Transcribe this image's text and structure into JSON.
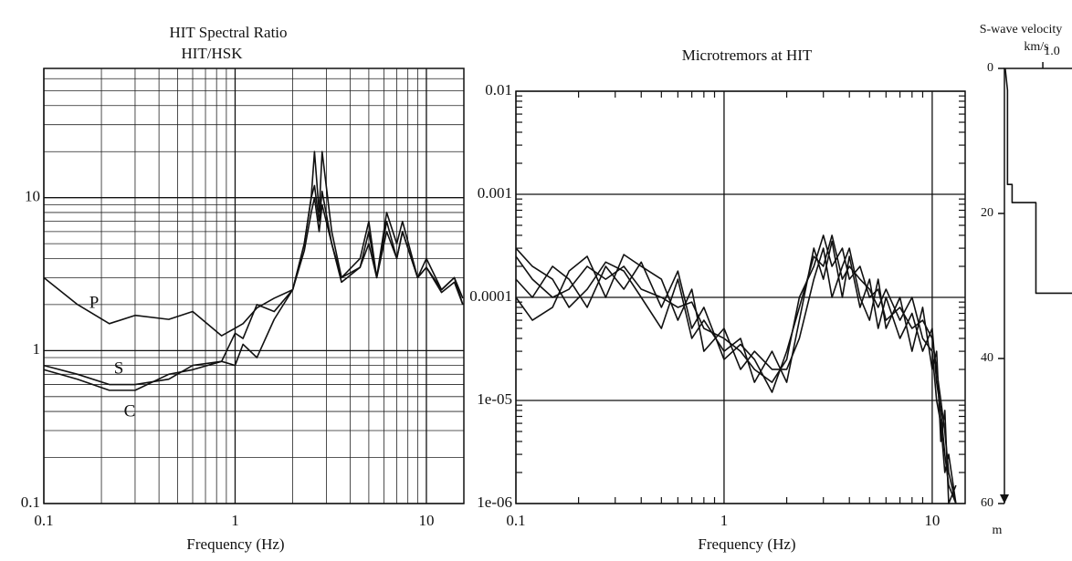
{
  "chart_data": [
    {
      "type": "line",
      "title": "HIT Spectral Ratio",
      "subtitle": "HIT/HSK",
      "xlabel": "Frequency (Hz)",
      "xscale": "log",
      "yscale": "log",
      "grid": true,
      "minor_grid": true,
      "xlim": [
        0.1,
        15.7
      ],
      "ylim": [
        0.1,
        70
      ],
      "xticks": [
        0.1,
        1,
        10
      ],
      "yticks": [
        0.1,
        1,
        10
      ],
      "annotations": [
        "P",
        "S",
        "C"
      ],
      "x": [
        0.1,
        0.15,
        0.22,
        0.3,
        0.45,
        0.6,
        0.85,
        1,
        1.1,
        1.3,
        1.6,
        2,
        2.3,
        2.5,
        2.6,
        2.75,
        2.85,
        3.2,
        3.6,
        4.5,
        5,
        5.5,
        6.2,
        7,
        7.5,
        9,
        10,
        12,
        14,
        15.5
      ],
      "series": [
        {
          "color": "#111111",
          "values": [
            3,
            2,
            1.5,
            1.7,
            1.6,
            1.8,
            1.25,
            1.4,
            1.5,
            1.9,
            2.2,
            2.5,
            5,
            10,
            20,
            8,
            20,
            6,
            3,
            4,
            7,
            3,
            8,
            5,
            7,
            3,
            4,
            2.5,
            3,
            2
          ]
        },
        {
          "color": "#111111",
          "values": [
            0.8,
            0.7,
            0.6,
            0.6,
            0.65,
            0.8,
            0.85,
            1.3,
            1.2,
            2,
            1.8,
            2.5,
            5,
            10,
            12,
            7,
            11,
            5,
            3,
            3.5,
            6,
            3,
            7,
            4,
            6,
            3,
            3.5,
            2.5,
            3,
            2.2
          ]
        },
        {
          "color": "#111111",
          "values": [
            0.75,
            0.65,
            0.55,
            0.55,
            0.7,
            0.75,
            0.85,
            0.8,
            1.1,
            0.9,
            1.6,
            2.5,
            4.5,
            8,
            10,
            6,
            9,
            5,
            2.8,
            3.5,
            5,
            3,
            6,
            4,
            6,
            3,
            3.5,
            2.4,
            2.8,
            2
          ]
        }
      ]
    },
    {
      "type": "line",
      "title": "Microtremors at HIT",
      "xlabel": "Frequency (Hz)",
      "xscale": "log",
      "yscale": "log",
      "grid": true,
      "minor_ticks": true,
      "xlim": [
        0.1,
        14.4
      ],
      "ylim": [
        1e-06,
        0.01
      ],
      "xticks": [
        0.1,
        1,
        10
      ],
      "yticks": [
        {
          "value": 1e-06,
          "label": "1e-06"
        },
        {
          "value": 1e-05,
          "label": "1e-05"
        },
        0.0001,
        0.001,
        0.01
      ],
      "x": [
        0.1,
        0.12,
        0.15,
        0.18,
        0.22,
        0.27,
        0.33,
        0.4,
        0.5,
        0.6,
        0.7,
        0.8,
        1,
        1.2,
        1.4,
        1.7,
        2,
        2.3,
        2.7,
        3,
        3.3,
        3.7,
        4,
        4.5,
        5,
        5.5,
        6,
        7,
        8,
        9,
        10,
        10.5,
        11,
        11.5,
        12,
        13
      ],
      "series": [
        {
          "color": "#111111",
          "values": [
            0.00025,
            0.00015,
            0.0001,
            0.00012,
            0.0002,
            0.00015,
            0.0002,
            0.00012,
            0.0001,
            8e-05,
            9e-05,
            5e-05,
            4e-05,
            3e-05,
            2e-05,
            1.5e-05,
            2.5e-05,
            0.0001,
            0.0002,
            0.0004,
            0.0002,
            0.0003,
            0.00015,
            0.0002,
            0.0001,
            0.00012,
            6e-05,
            8e-05,
            5e-05,
            6e-05,
            4e-05,
            2e-05,
            1e-05,
            5e-06,
            2e-06,
            1e-06
          ]
        },
        {
          "color": "#111111",
          "values": [
            0.0003,
            0.0002,
            0.00015,
            8e-05,
            0.00012,
            0.00022,
            0.00018,
            0.0001,
            5e-05,
            0.00015,
            4e-05,
            6e-05,
            3e-05,
            4e-05,
            1.5e-05,
            3e-05,
            1.5e-05,
            6e-05,
            0.0003,
            0.00015,
            0.00035,
            0.0001,
            0.00025,
            8e-05,
            0.00015,
            5e-05,
            0.0001,
            4e-05,
            7e-05,
            3e-05,
            5e-05,
            1.5e-05,
            8e-06,
            3e-06,
            1.5e-06,
            1e-06
          ]
        },
        {
          "color": "#111111",
          "values": [
            0.0001,
            6e-05,
            8e-05,
            0.00018,
            0.00025,
            0.0001,
            0.00026,
            0.0002,
            0.00015,
            6e-05,
            0.00012,
            3e-05,
            5e-05,
            2e-05,
            3e-05,
            2e-05,
            2e-05,
            4e-05,
            0.00015,
            0.0003,
            0.0001,
            0.0002,
            0.0003,
            0.0001,
            6e-05,
            0.00015,
            5e-05,
            0.0001,
            3e-05,
            8e-05,
            2e-05,
            3e-05,
            4e-06,
            8e-06,
            1e-06,
            1.5e-06
          ]
        },
        {
          "color": "#111111",
          "values": [
            0.00015,
            0.0001,
            0.0002,
            0.00015,
            8e-05,
            0.0002,
            0.00012,
            0.00022,
            8e-05,
            0.00018,
            5e-05,
            8e-05,
            2.5e-05,
            3.5e-05,
            2.5e-05,
            1.2e-05,
            3e-05,
            8e-05,
            0.00025,
            0.0002,
            0.0004,
            0.00015,
            0.0002,
            0.00015,
            0.00012,
            8e-05,
            0.00012,
            6e-05,
            0.0001,
            4e-05,
            3e-05,
            1e-05,
            6e-06,
            2e-06,
            3e-06,
            1e-06
          ]
        }
      ]
    },
    {
      "type": "line",
      "title": "S-wave velocity",
      "subtitle": "km/s",
      "ylabel": "m",
      "y_inverted": true,
      "xlim": [
        0,
        1.76
      ],
      "ylim": [
        0,
        60
      ],
      "xticks": [
        {
          "value": 1,
          "label": "1.0"
        }
      ],
      "yticks": [
        0,
        20,
        40,
        60
      ],
      "x": [
        0.02,
        0.08,
        0.08,
        0.2,
        0.2,
        0.82,
        0.82,
        1.76
      ],
      "series": [
        {
          "color": "#111111",
          "values": [
            0,
            3,
            16,
            16,
            18.5,
            18.5,
            31,
            31
          ]
        }
      ]
    }
  ]
}
